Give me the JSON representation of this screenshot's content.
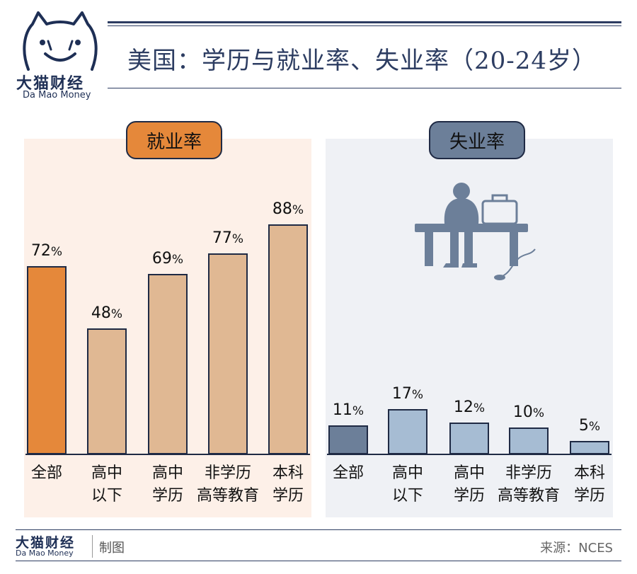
{
  "brand": {
    "name_cn": "大猫财经",
    "name_en": "Da Mao Money"
  },
  "header": {
    "title": "美国：学历与就业率、失业率（20-24岁）"
  },
  "footer": {
    "credit": "制图",
    "source": "来源：NCES"
  },
  "colors": {
    "employment_panel_bg": "#fdf0e8",
    "unemployment_panel_bg": "#eff1f5",
    "employment_highlight": "#e5883a",
    "employment_bar": "#e0b893",
    "unemployment_highlight": "#6c7f99",
    "unemployment_bar": "#a6bcd3",
    "title_color": "#2d3d62"
  },
  "chart_data": [
    {
      "type": "bar",
      "title": "就业率",
      "categories": [
        [
          "全部"
        ],
        [
          "高中",
          "以下"
        ],
        [
          "高中",
          "学历"
        ],
        [
          "非学历",
          "高等教育"
        ],
        [
          "本科",
          "学历"
        ]
      ],
      "values": [
        72,
        48,
        69,
        77,
        88
      ],
      "value_labels": [
        "72%",
        "48%",
        "69%",
        "77%",
        "88%"
      ],
      "ylim": [
        0,
        100
      ],
      "grid": false,
      "legend": "none"
    },
    {
      "type": "bar",
      "title": "失业率",
      "categories": [
        [
          "全部"
        ],
        [
          "高中",
          "以下"
        ],
        [
          "高中",
          "学历"
        ],
        [
          "非学历",
          "高等教育"
        ],
        [
          "本科",
          "学历"
        ]
      ],
      "values": [
        11,
        17,
        12,
        10,
        5
      ],
      "value_labels": [
        "11%",
        "17%",
        "12%",
        "10%",
        "5%"
      ],
      "ylim": [
        0,
        100
      ],
      "grid": false,
      "legend": "none"
    }
  ]
}
